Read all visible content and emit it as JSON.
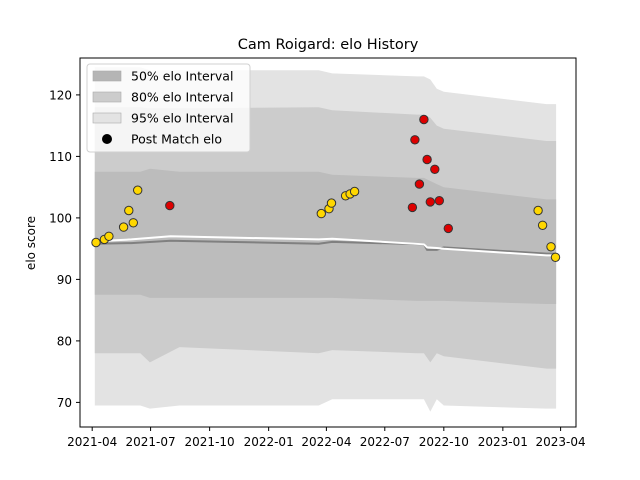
{
  "chart_data": {
    "type": "area",
    "title": "Cam Roigard: elo History",
    "xlabel": "",
    "ylabel": "elo score",
    "xlim": [
      "2021-03-13",
      "2023-04-25"
    ],
    "ylim": [
      66,
      126
    ],
    "x_ticks": [
      "2021-04",
      "2021-07",
      "2021-10",
      "2022-01",
      "2022-04",
      "2022-07",
      "2022-10",
      "2023-01",
      "2023-04"
    ],
    "y_ticks": [
      70,
      80,
      90,
      100,
      110,
      120
    ],
    "grid": false,
    "legend_position": "top-left",
    "legend": [
      {
        "label": "50% elo Interval",
        "kind": "band",
        "color": "#b5b5b5"
      },
      {
        "label": "80% elo Interval",
        "kind": "band",
        "color": "#cccccc"
      },
      {
        "label": "95% elo Interval",
        "kind": "band",
        "color": "#e3e3e3"
      },
      {
        "label": "Post Match elo",
        "kind": "marker",
        "color": "#000000"
      }
    ],
    "bands": {
      "x": [
        "2021-04-05",
        "2021-06-15",
        "2021-06-30",
        "2021-08-15",
        "2022-03-20",
        "2022-04-10",
        "2022-08-20",
        "2022-08-31",
        "2022-09-10",
        "2022-09-20",
        "2022-10-01",
        "2023-03-10",
        "2023-03-25"
      ],
      "p95_upper": [
        124.5,
        124.5,
        124.0,
        124.0,
        124.0,
        123.5,
        123.0,
        123.0,
        122.5,
        121.0,
        120.5,
        118.5,
        118.5
      ],
      "p80_upper": [
        118.0,
        118.0,
        117.8,
        117.8,
        118.0,
        117.5,
        116.8,
        116.8,
        116.3,
        115.0,
        114.5,
        112.5,
        112.5
      ],
      "p50_upper": [
        107.5,
        107.5,
        108.0,
        107.5,
        107.5,
        107.0,
        106.5,
        106.5,
        106.0,
        105.5,
        105.0,
        103.0,
        103.0
      ],
      "p50_lower": [
        87.5,
        87.5,
        87.0,
        87.0,
        87.0,
        87.0,
        86.5,
        86.5,
        86.5,
        86.5,
        86.5,
        86.0,
        86.0
      ],
      "p80_lower": [
        78.0,
        78.0,
        76.5,
        79.0,
        78.0,
        78.5,
        78.0,
        78.0,
        76.5,
        78.0,
        77.5,
        75.5,
        75.5
      ],
      "p95_lower": [
        69.5,
        69.5,
        69.0,
        69.5,
        69.5,
        70.5,
        70.5,
        70.5,
        68.5,
        70.5,
        69.5,
        69.0,
        69.0
      ]
    },
    "mean_line": {
      "x": [
        "2021-04-05",
        "2021-06-01",
        "2021-08-01",
        "2022-03-20",
        "2022-04-10",
        "2022-08-31",
        "2022-09-05",
        "2022-09-20",
        "2022-10-01",
        "2023-03-10",
        "2023-03-25"
      ],
      "y": [
        96.2,
        96.5,
        97.0,
        96.5,
        96.6,
        95.7,
        95.2,
        95.1,
        95.0,
        93.9,
        93.9
      ],
      "color": "#ffffff"
    },
    "median_line": {
      "x": [
        "2021-04-05",
        "2021-06-01",
        "2021-08-01",
        "2022-03-20",
        "2022-04-10",
        "2022-08-31",
        "2022-09-05",
        "2022-09-20",
        "2022-10-01",
        "2023-03-10",
        "2023-03-25"
      ],
      "y": [
        95.8,
        95.9,
        96.3,
        95.8,
        96.1,
        95.7,
        94.8,
        94.8,
        95.2,
        94.2,
        94.2
      ],
      "color": "#808080"
    },
    "series": [
      {
        "name": "Post Match elo",
        "marker_edge": "#333333",
        "points": [
          {
            "x": "2021-04-07",
            "y": 96.0,
            "color": "#ffd700"
          },
          {
            "x": "2021-04-20",
            "y": 96.5,
            "color": "#ffd700"
          },
          {
            "x": "2021-04-27",
            "y": 97.0,
            "color": "#ffd700"
          },
          {
            "x": "2021-05-20",
            "y": 98.5,
            "color": "#ffd700"
          },
          {
            "x": "2021-05-28",
            "y": 101.2,
            "color": "#ffd700"
          },
          {
            "x": "2021-06-04",
            "y": 99.2,
            "color": "#ffd700"
          },
          {
            "x": "2021-06-11",
            "y": 104.5,
            "color": "#ffd700"
          },
          {
            "x": "2021-07-31",
            "y": 102.0,
            "color": "#dd0000"
          },
          {
            "x": "2022-03-24",
            "y": 100.7,
            "color": "#ffd700"
          },
          {
            "x": "2022-04-05",
            "y": 101.5,
            "color": "#ffd700"
          },
          {
            "x": "2022-04-09",
            "y": 102.4,
            "color": "#ffd700"
          },
          {
            "x": "2022-05-01",
            "y": 103.6,
            "color": "#ffd700"
          },
          {
            "x": "2022-05-08",
            "y": 103.9,
            "color": "#ffd700"
          },
          {
            "x": "2022-05-15",
            "y": 104.3,
            "color": "#ffd700"
          },
          {
            "x": "2022-08-13",
            "y": 101.7,
            "color": "#dd0000"
          },
          {
            "x": "2022-08-17",
            "y": 112.7,
            "color": "#dd0000"
          },
          {
            "x": "2022-08-24",
            "y": 105.5,
            "color": "#dd0000"
          },
          {
            "x": "2022-08-31",
            "y": 116.0,
            "color": "#dd0000"
          },
          {
            "x": "2022-09-05",
            "y": 109.5,
            "color": "#dd0000"
          },
          {
            "x": "2022-09-10",
            "y": 102.6,
            "color": "#dd0000"
          },
          {
            "x": "2022-09-17",
            "y": 107.9,
            "color": "#dd0000"
          },
          {
            "x": "2022-09-24",
            "y": 102.8,
            "color": "#dd0000"
          },
          {
            "x": "2022-10-08",
            "y": 98.3,
            "color": "#dd0000"
          },
          {
            "x": "2023-02-25",
            "y": 101.2,
            "color": "#ffd700"
          },
          {
            "x": "2023-03-04",
            "y": 98.8,
            "color": "#ffd700"
          },
          {
            "x": "2023-03-17",
            "y": 95.3,
            "color": "#ffd700"
          },
          {
            "x": "2023-03-24",
            "y": 93.6,
            "color": "#ffd700"
          }
        ]
      }
    ]
  }
}
